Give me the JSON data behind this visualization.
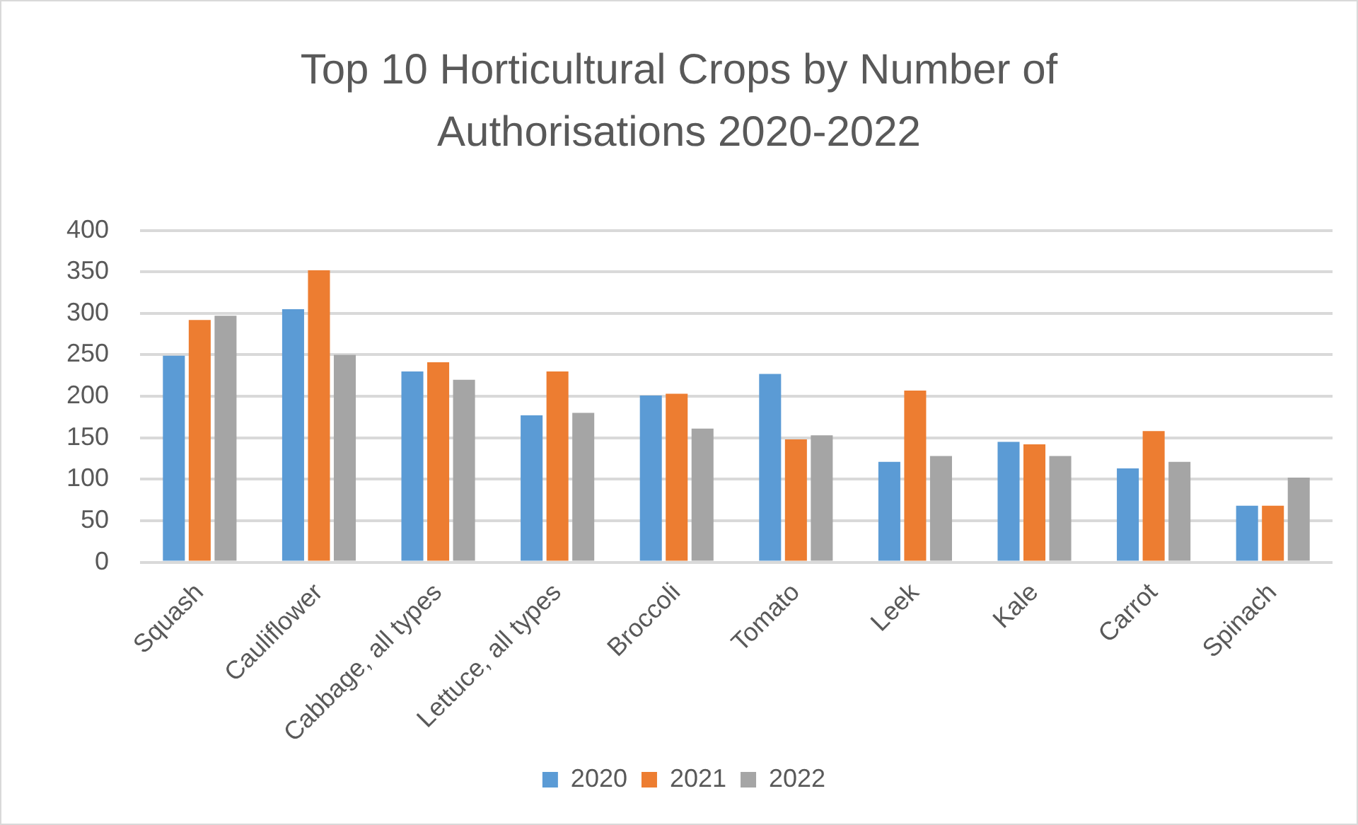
{
  "chart_data": {
    "type": "bar",
    "title": "Top 10 Horticultural Crops by Number of Authorisations 2020-2022",
    "categories": [
      "Squash",
      "Cauliflower",
      "Cabbage, all types",
      "Lettuce, all types",
      "Broccoli",
      "Tomato",
      "Leek",
      "Kale",
      "Carrot",
      "Spinach"
    ],
    "series": [
      {
        "name": "2020",
        "color": "#5b9bd5",
        "values": [
          249,
          305,
          230,
          177,
          201,
          227,
          121,
          145,
          113,
          68
        ]
      },
      {
        "name": "2021",
        "color": "#ed7d31",
        "values": [
          292,
          352,
          241,
          230,
          203,
          148,
          207,
          142,
          158,
          68
        ]
      },
      {
        "name": "2022",
        "color": "#a5a5a5",
        "values": [
          297,
          250,
          220,
          180,
          161,
          153,
          128,
          128,
          121,
          102
        ]
      }
    ],
    "ylim": [
      0,
      400
    ],
    "yticks": [
      0,
      50,
      100,
      150,
      200,
      250,
      300,
      350,
      400
    ],
    "grid": "y",
    "legend": "bottom"
  }
}
